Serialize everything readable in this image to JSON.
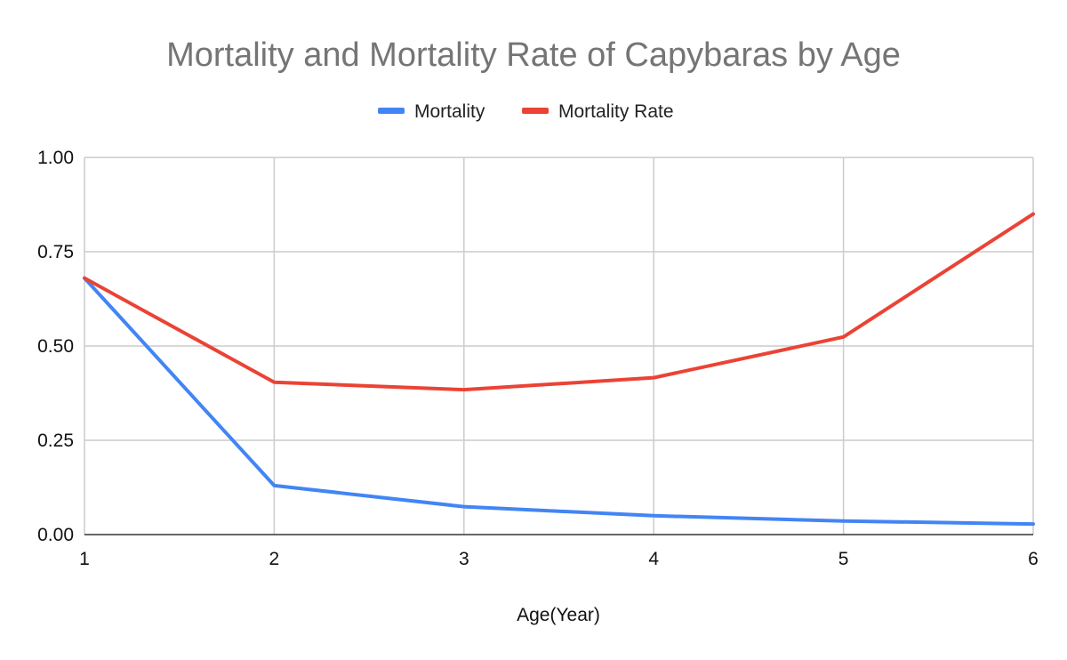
{
  "chart_data": {
    "type": "line",
    "title": "Mortality and Mortality Rate of Capybaras by Age",
    "xlabel": "Age(Year)",
    "ylabel": "",
    "categories": [
      "1",
      "2",
      "3",
      "4",
      "5",
      "6"
    ],
    "x": [
      1,
      2,
      3,
      4,
      5,
      6
    ],
    "xlim": [
      1,
      6
    ],
    "ylim": [
      0,
      1
    ],
    "y_ticks": [
      "0.00",
      "0.25",
      "0.50",
      "0.75",
      "1.00"
    ],
    "y_tick_values": [
      0,
      0.25,
      0.5,
      0.75,
      1.0
    ],
    "grid": true,
    "legend_position": "top-center",
    "series": [
      {
        "name": "Mortality",
        "color": "#4285f4",
        "values": [
          0.68,
          0.13,
          0.074,
          0.05,
          0.036,
          0.028
        ]
      },
      {
        "name": "Mortality Rate",
        "color": "#ea4335",
        "values": [
          0.68,
          0.404,
          0.384,
          0.416,
          0.524,
          0.85
        ]
      }
    ]
  }
}
